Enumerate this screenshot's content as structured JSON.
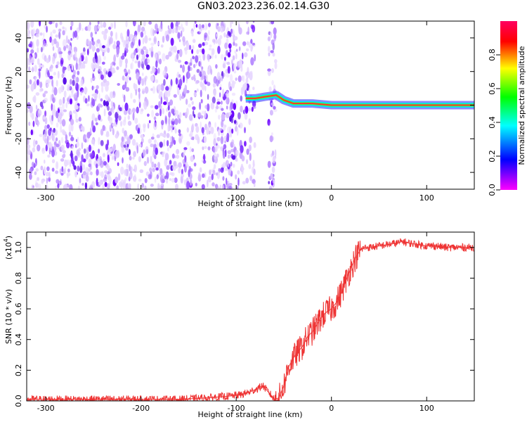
{
  "figure_title": "GN03.2023.236.02.14.G30",
  "chart_data": [
    {
      "type": "heatmap",
      "xlabel": "Height of straight line (km)",
      "ylabel": "Frequency (Hz)",
      "xlim": [
        -320,
        150
      ],
      "ylim": [
        -50,
        50
      ],
      "xticks": [
        -300,
        -200,
        -100,
        0,
        100
      ],
      "yticks": [
        -40,
        -20,
        0,
        20,
        40
      ],
      "colorbar": {
        "label": "Normalized spectral amplitude",
        "range": [
          0.0,
          1.0
        ],
        "ticks": [
          0.0,
          0.2,
          0.4,
          0.6,
          0.8
        ],
        "colormap": "rainbow (magenta-blue-cyan-green-yellow-red)"
      },
      "regions": [
        {
          "x_range": [
            -320,
            -88
          ],
          "description": "broadband noise, low-mid amplitude"
        },
        {
          "x_range": [
            -88,
            -58
          ],
          "description": "line near ~4 Hz, gap (no data) ~-80 to -65"
        },
        {
          "x_range": [
            -58,
            150
          ],
          "description": "narrow line at ~0-2 Hz, high amplitude"
        }
      ],
      "line_trace": [
        {
          "x": -90,
          "y": 4
        },
        {
          "x": -80,
          "y": 4
        },
        {
          "x": -70,
          "y": 5
        },
        {
          "x": -58,
          "y": 6
        },
        {
          "x": -50,
          "y": 3
        },
        {
          "x": -40,
          "y": 1
        },
        {
          "x": -20,
          "y": 1
        },
        {
          "x": 0,
          "y": 0
        },
        {
          "x": 50,
          "y": 0
        },
        {
          "x": 100,
          "y": 0
        },
        {
          "x": 150,
          "y": 0
        }
      ]
    },
    {
      "type": "line",
      "xlabel": "Height of straight line (km)",
      "ylabel": "SNR (10 * v/v)",
      "scale_note": "(x10",
      "scale_exp": "4",
      "xlim": [
        -320,
        150
      ],
      "ylim": [
        0,
        1.1
      ],
      "xticks": [
        -300,
        -200,
        -100,
        0,
        100
      ],
      "yticks": [
        "0.0",
        "0.2",
        "0.4",
        "0.6",
        "0.8",
        "1.0"
      ],
      "color": "#ee3333",
      "series": [
        {
          "x": [
            -320,
            -250,
            -200,
            -160,
            -130,
            -110,
            -95,
            -85,
            -78,
            -72,
            -68,
            -65,
            -60,
            -55,
            -50,
            -45,
            -40,
            -35,
            -30,
            -25,
            -20,
            -15,
            -10,
            -5,
            0,
            5,
            10,
            15,
            20,
            25,
            30,
            35,
            40,
            50,
            60,
            70,
            75,
            80,
            90,
            100,
            110,
            120,
            130,
            140,
            150
          ],
          "y": [
            0.01,
            0.01,
            0.01,
            0.01,
            0.02,
            0.03,
            0.04,
            0.06,
            0.08,
            0.1,
            0.07,
            0.05,
            0.01,
            0.02,
            0.1,
            0.22,
            0.28,
            0.32,
            0.36,
            0.42,
            0.45,
            0.5,
            0.55,
            0.58,
            0.6,
            0.64,
            0.7,
            0.78,
            0.86,
            0.93,
            0.98,
            1.0,
            1.0,
            1.01,
            1.02,
            1.03,
            1.04,
            1.03,
            1.02,
            1.01,
            1.01,
            1.0,
            1.0,
            1.0,
            1.0
          ]
        }
      ]
    }
  ]
}
